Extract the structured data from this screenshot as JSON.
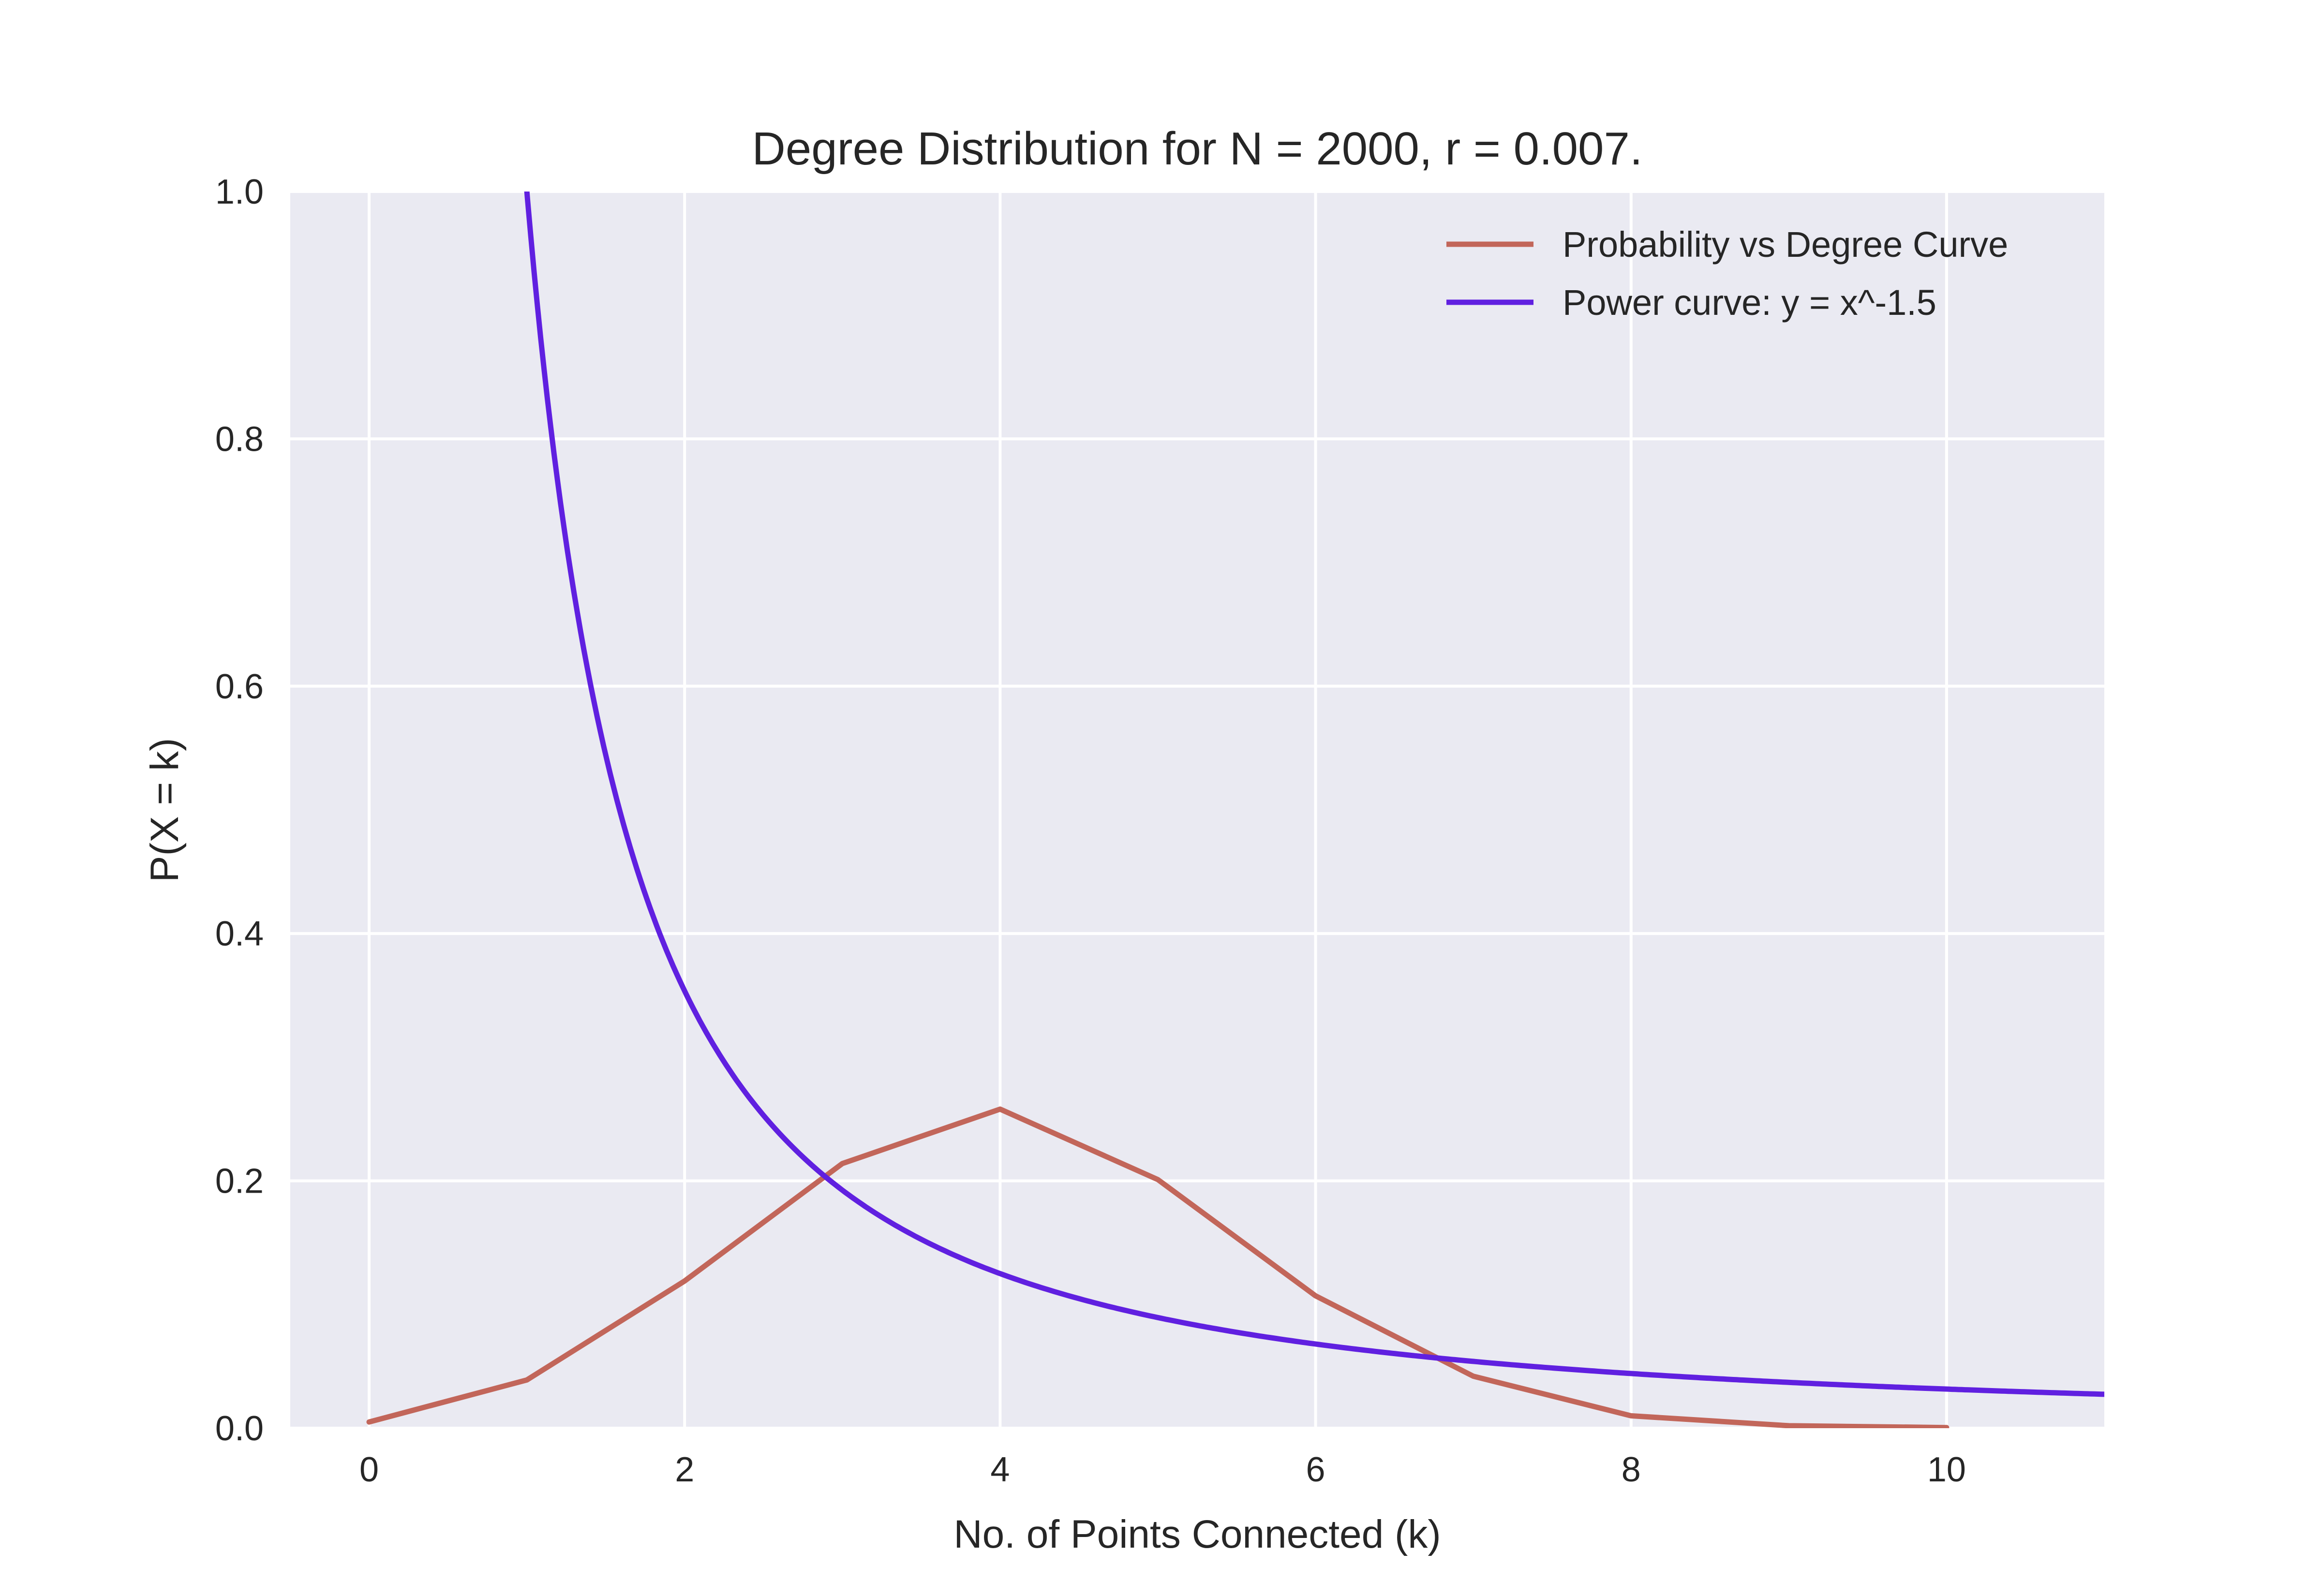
{
  "chart_data": {
    "type": "line",
    "title": "Degree Distribution for N = 2000, r = 0.007.",
    "xlabel": "No. of Points Connected (k)",
    "ylabel": "P(X = k)",
    "xlim": [
      -0.5,
      11
    ],
    "ylim": [
      0,
      1.0
    ],
    "xticks": [
      0,
      2,
      4,
      6,
      8,
      10
    ],
    "yticks": [
      0.0,
      0.2,
      0.4,
      0.6,
      0.8,
      1.0
    ],
    "xtick_labels": [
      "0",
      "2",
      "4",
      "6",
      "8",
      "10"
    ],
    "ytick_labels": [
      "0.0",
      "0.2",
      "0.4",
      "0.6",
      "0.8",
      "1.0"
    ],
    "grid": true,
    "legend_position": "top-right",
    "background_color": "#eaeaf2",
    "grid_color": "#ffffff",
    "series": [
      {
        "name": "Probability vs Degree Curve",
        "color": "#c2665a",
        "x": [
          0,
          1,
          2,
          3,
          4,
          5,
          6,
          7,
          8,
          9,
          10
        ],
        "y": [
          0.005,
          0.039,
          0.119,
          0.214,
          0.258,
          0.201,
          0.107,
          0.042,
          0.01,
          0.002,
          0.0005
        ]
      },
      {
        "name": "Power curve: y = x^-1.5",
        "color": "#6020e0",
        "function": "power",
        "exponent": -1.5,
        "x_range": [
          0.5,
          11
        ]
      }
    ]
  }
}
